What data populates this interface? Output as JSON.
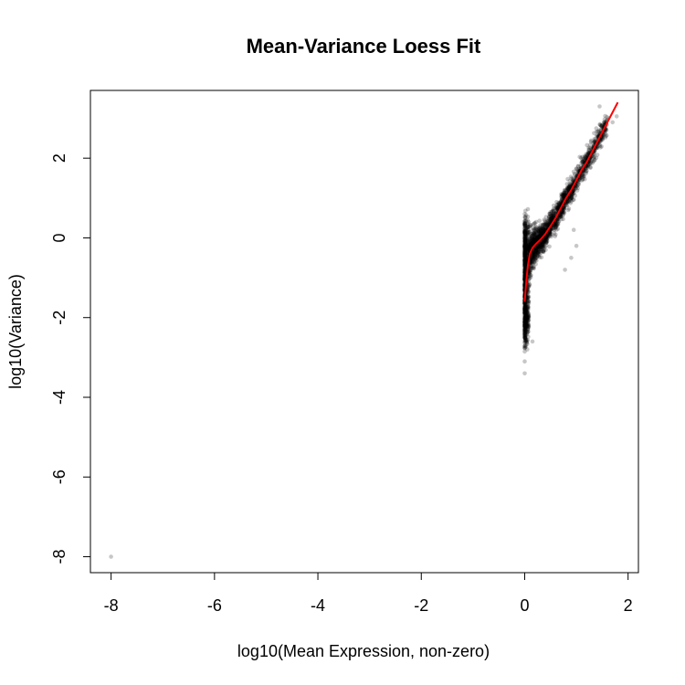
{
  "chart_data": {
    "type": "scatter",
    "title": "Mean-Variance Loess Fit",
    "xlabel": "log10(Mean Expression, non-zero)",
    "ylabel": "log10(Variance)",
    "xlim": [
      -8.4,
      2.2
    ],
    "ylim": [
      -8.4,
      3.7
    ],
    "x_ticks": [
      -8,
      -6,
      -4,
      -2,
      0,
      2
    ],
    "x_tick_labels": [
      "-8",
      "-6",
      "-4",
      "-2",
      "0",
      "2"
    ],
    "y_ticks": [
      -8,
      -6,
      -4,
      -2,
      0,
      2
    ],
    "y_tick_labels": [
      "-8",
      "-6",
      "-4",
      "-2",
      "0",
      "2"
    ],
    "grid": false,
    "point_color": "#000000",
    "point_opacity": 0.22,
    "fit_color": "#ff0000",
    "outlier_points": [
      {
        "x": -8.0,
        "y": -8.0
      },
      {
        "x": 0.0,
        "y": -3.1
      },
      {
        "x": 0.0,
        "y": -3.4
      },
      {
        "x": 1.45,
        "y": 3.3
      },
      {
        "x": 1.62,
        "y": 3.0
      },
      {
        "x": 1.78,
        "y": 3.05
      },
      {
        "x": 1.7,
        "y": 2.9
      },
      {
        "x": 1.0,
        "y": -0.2
      },
      {
        "x": 0.9,
        "y": -0.5
      },
      {
        "x": 0.78,
        "y": -0.8
      },
      {
        "x": 0.95,
        "y": 0.2
      },
      {
        "x": 0.05,
        "y": -2.8
      },
      {
        "x": 0.15,
        "y": -2.6
      }
    ],
    "cloud": {
      "x_range": [
        0.0,
        1.6
      ],
      "n_points": 2600
    },
    "series": [
      {
        "type": "line",
        "points": [
          {
            "x": 0.0,
            "y": -1.6
          },
          {
            "x": 0.03,
            "y": -1.1
          },
          {
            "x": 0.06,
            "y": -0.7
          },
          {
            "x": 0.1,
            "y": -0.4
          },
          {
            "x": 0.15,
            "y": -0.25
          },
          {
            "x": 0.22,
            "y": -0.15
          },
          {
            "x": 0.3,
            "y": -0.05
          },
          {
            "x": 0.4,
            "y": 0.1
          },
          {
            "x": 0.5,
            "y": 0.3
          },
          {
            "x": 0.6,
            "y": 0.5
          },
          {
            "x": 0.7,
            "y": 0.75
          },
          {
            "x": 0.8,
            "y": 1.0
          },
          {
            "x": 0.9,
            "y": 1.2
          },
          {
            "x": 1.0,
            "y": 1.45
          },
          {
            "x": 1.1,
            "y": 1.7
          },
          {
            "x": 1.2,
            "y": 1.9
          },
          {
            "x": 1.3,
            "y": 2.15
          },
          {
            "x": 1.4,
            "y": 2.4
          },
          {
            "x": 1.5,
            "y": 2.65
          },
          {
            "x": 1.6,
            "y": 2.9
          },
          {
            "x": 1.7,
            "y": 3.15
          },
          {
            "x": 1.8,
            "y": 3.4
          }
        ]
      }
    ]
  }
}
